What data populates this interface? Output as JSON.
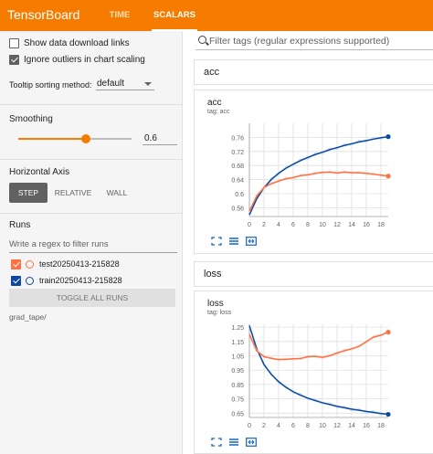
{
  "header": {
    "brand": "TensorBoard",
    "tabs": [
      {
        "label": "TIME SERIES",
        "active": false
      },
      {
        "label": "SCALARS",
        "active": true
      }
    ],
    "bg_color": "#f57c00"
  },
  "sidebar": {
    "show_download": {
      "label": "Show data download links",
      "checked": false
    },
    "ignore_outliers": {
      "label": "Ignore outliers in chart scaling",
      "checked": true
    },
    "tooltip": {
      "label": "Tooltip sorting method:",
      "value": "default"
    },
    "smoothing": {
      "label": "Smoothing",
      "value": "0.6",
      "fraction": 0.6
    },
    "horizontal_axis": {
      "label": "Horizontal Axis",
      "options": [
        "STEP",
        "RELATIVE",
        "WALL"
      ],
      "selected": "STEP"
    },
    "runs": {
      "label": "Runs",
      "filter_placeholder": "Write a regex to filter runs",
      "items": [
        {
          "name": "test20250413-215828",
          "color": "#ff7043",
          "checked": true
        },
        {
          "name": "train20250413-215828",
          "color": "#0d47a1",
          "checked": true
        }
      ],
      "toggle_label": "TOGGLE ALL RUNS",
      "log_dir": "grad_tape/"
    }
  },
  "main": {
    "search_placeholder": "Filter tags (regular expressions supported)",
    "groups": [
      {
        "name": "acc"
      },
      {
        "name": "loss"
      }
    ]
  },
  "chart_data": [
    {
      "type": "line",
      "title": "acc",
      "subtitle": "tag: acc",
      "xlim": [
        0,
        19
      ],
      "ylim": [
        0.535,
        0.8
      ],
      "x_ticks": [
        0,
        2,
        4,
        6,
        8,
        10,
        12,
        14,
        16,
        18
      ],
      "y_ticks": [
        0.56,
        0.6,
        0.64,
        0.68,
        0.72,
        0.76
      ],
      "x": [
        0,
        1,
        2,
        3,
        4,
        5,
        6,
        7,
        8,
        9,
        10,
        11,
        12,
        13,
        14,
        15,
        16,
        17,
        18,
        19
      ],
      "series": [
        {
          "color": "#0d47a1",
          "raw_color": "#bbdefb",
          "values": [
            0.54,
            0.585,
            0.617,
            0.64,
            0.658,
            0.672,
            0.684,
            0.694,
            0.703,
            0.711,
            0.718,
            0.725,
            0.731,
            0.737,
            0.742,
            0.747,
            0.751,
            0.755,
            0.759,
            0.762
          ]
        },
        {
          "color": "#ff7043",
          "raw_color": "#ffccbc",
          "values": [
            0.55,
            0.593,
            0.618,
            0.628,
            0.636,
            0.642,
            0.646,
            0.651,
            0.654,
            0.657,
            0.661,
            0.661,
            0.659,
            0.661,
            0.66,
            0.659,
            0.658,
            0.655,
            0.653,
            0.65
          ]
        }
      ]
    },
    {
      "type": "line",
      "title": "loss",
      "subtitle": "tag: loss",
      "xlim": [
        0,
        19
      ],
      "ylim": [
        0.62,
        1.27
      ],
      "x_ticks": [
        0,
        2,
        4,
        6,
        8,
        10,
        12,
        14,
        16,
        18
      ],
      "y_ticks": [
        0.65,
        0.75,
        0.85,
        0.95,
        1.05,
        1.15,
        1.25
      ],
      "x": [
        0,
        1,
        2,
        3,
        4,
        5,
        6,
        7,
        8,
        9,
        10,
        11,
        12,
        13,
        14,
        15,
        16,
        17,
        18,
        19
      ],
      "series": [
        {
          "color": "#0d47a1",
          "raw_color": "#bbdefb",
          "values": [
            1.26,
            1.1,
            0.99,
            0.92,
            0.87,
            0.83,
            0.8,
            0.775,
            0.755,
            0.738,
            0.723,
            0.71,
            0.698,
            0.688,
            0.678,
            0.67,
            0.662,
            0.655,
            0.648,
            0.642
          ]
        },
        {
          "color": "#ff7043",
          "raw_color": "#ffccbc",
          "values": [
            1.2,
            1.085,
            1.045,
            1.032,
            1.025,
            1.025,
            1.03,
            1.03,
            1.045,
            1.045,
            1.04,
            1.05,
            1.07,
            1.085,
            1.1,
            1.115,
            1.15,
            1.18,
            1.195,
            1.215
          ]
        }
      ]
    }
  ]
}
